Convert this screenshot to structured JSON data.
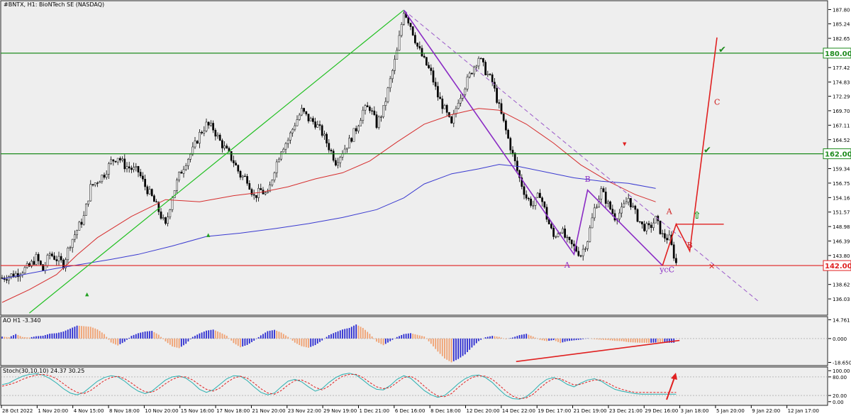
{
  "chart_data": {
    "type": "candlestick",
    "title": "#BNTX, H1: BioNTech SE (NASDAQ)",
    "price_axis": {
      "ticks": [
        187.8,
        185.24,
        182.65,
        180.0,
        177.42,
        174.83,
        172.29,
        169.7,
        167.11,
        164.52,
        161.88,
        159.34,
        156.75,
        154.16,
        151.57,
        148.98,
        146.39,
        143.8,
        142.0,
        138.62,
        136.03
      ],
      "range": [
        133.5,
        189.0
      ]
    },
    "time_axis": {
      "labels": [
        "28 Oct 2022",
        "1 Nov 20:00",
        "4 Nov 15:00",
        "8 Nov 18:00",
        "10 Nov 20:00",
        "15 Nov 16:00",
        "17 Nov 18:00",
        "21 Nov 20:00",
        "23 Nov 22:00",
        "29 Nov 19:00",
        "1 Dec 21:00",
        "6 Dec 16:00",
        "8 Dec 18:00",
        "12 Dec 20:00",
        "14 Dec 22:00",
        "19 Dec 17:00",
        "21 Dec 19:00",
        "23 Dec 21:00",
        "29 Dec 16:00",
        "3 Jan 18:00",
        "5 Jan 20:00",
        "9 Jan 22:00",
        "12 Jan 17:00"
      ]
    },
    "price_path": [
      [
        0,
        139.8
      ],
      [
        2,
        140.5
      ],
      [
        4,
        141.8
      ],
      [
        5,
        143.4
      ],
      [
        6,
        141.2
      ],
      [
        7,
        144.1
      ],
      [
        9,
        142.3
      ],
      [
        10,
        146.0
      ],
      [
        12,
        150.7
      ],
      [
        13,
        156.0
      ],
      [
        15,
        158.4
      ],
      [
        16,
        160.6
      ],
      [
        17,
        161.5
      ],
      [
        18,
        159.9
      ],
      [
        19,
        159.3
      ],
      [
        20,
        158.8
      ],
      [
        21,
        156.2
      ],
      [
        22,
        154.2
      ],
      [
        23,
        151.8
      ],
      [
        24,
        149.0
      ],
      [
        25,
        154.5
      ],
      [
        26,
        158.1
      ],
      [
        27,
        160.6
      ],
      [
        28,
        162.6
      ],
      [
        29,
        165.5
      ],
      [
        30,
        167.2
      ],
      [
        31,
        166.5
      ],
      [
        32,
        164.2
      ],
      [
        33,
        162.4
      ],
      [
        34,
        160.6
      ],
      [
        35,
        158.1
      ],
      [
        36,
        157.5
      ],
      [
        37,
        154.3
      ],
      [
        38,
        155.4
      ],
      [
        39,
        154.5
      ],
      [
        40,
        159.3
      ],
      [
        41,
        162.9
      ],
      [
        42,
        164.5
      ],
      [
        43,
        167.4
      ],
      [
        44,
        169.7
      ],
      [
        45,
        168.2
      ],
      [
        46,
        167.5
      ],
      [
        47,
        165.7
      ],
      [
        48,
        163.2
      ],
      [
        49,
        160.6
      ],
      [
        50,
        162.4
      ],
      [
        51,
        164.2
      ],
      [
        52,
        166.5
      ],
      [
        53,
        169.7
      ],
      [
        54,
        170.3
      ],
      [
        55,
        167.2
      ],
      [
        56,
        169.9
      ],
      [
        57,
        175.1
      ],
      [
        58,
        180.2
      ],
      [
        59,
        187.7
      ],
      [
        60,
        185.0
      ],
      [
        61,
        181.2
      ],
      [
        62,
        178.6
      ],
      [
        63,
        176.4
      ],
      [
        64,
        172.3
      ],
      [
        65,
        169.9
      ],
      [
        66,
        167.0
      ],
      [
        67,
        171.7
      ],
      [
        68,
        174.2
      ],
      [
        69,
        176.9
      ],
      [
        70,
        179.3
      ],
      [
        71,
        176.8
      ],
      [
        72,
        174.8
      ],
      [
        73,
        170.3
      ],
      [
        74,
        166.1
      ],
      [
        75,
        161.8
      ],
      [
        76,
        157.6
      ],
      [
        77,
        154.2
      ],
      [
        78,
        152.8
      ],
      [
        79,
        154.9
      ],
      [
        80,
        150.6
      ],
      [
        81,
        147.1
      ],
      [
        82,
        148.6
      ],
      [
        83,
        146.3
      ],
      [
        84,
        145.2
      ],
      [
        85,
        144.0
      ],
      [
        86,
        146.7
      ],
      [
        87,
        152.1
      ],
      [
        88,
        155.4
      ],
      [
        89,
        152.9
      ],
      [
        90,
        150.7
      ],
      [
        91,
        151.8
      ],
      [
        92,
        154.1
      ],
      [
        93,
        151.3
      ],
      [
        94,
        149.1
      ],
      [
        95,
        148.6
      ],
      [
        96,
        150.3
      ],
      [
        97,
        147.3
      ],
      [
        98,
        146.8
      ],
      [
        99,
        142.4
      ]
    ],
    "moving_averages": [
      {
        "color": "#d62d2d",
        "points": [
          [
            0,
            135.4
          ],
          [
            4,
            137.7
          ],
          [
            8,
            140.4
          ],
          [
            11,
            143.9
          ],
          [
            14,
            147.0
          ],
          [
            19,
            150.8
          ],
          [
            24,
            153.8
          ],
          [
            29,
            153.4
          ],
          [
            34,
            154.5
          ],
          [
            38,
            155.1
          ],
          [
            42,
            156.1
          ],
          [
            46,
            157.5
          ],
          [
            50,
            158.6
          ],
          [
            54,
            160.7
          ],
          [
            58,
            164.1
          ],
          [
            62,
            167.3
          ],
          [
            66,
            169.0
          ],
          [
            70,
            170.1
          ],
          [
            73,
            169.8
          ],
          [
            77,
            167.3
          ],
          [
            81,
            163.9
          ],
          [
            85,
            160.0
          ],
          [
            89,
            157.1
          ],
          [
            93,
            154.7
          ],
          [
            96,
            153.4
          ]
        ]
      },
      {
        "color": "#3a3ad0",
        "points": [
          [
            0,
            139.6
          ],
          [
            4,
            140.6
          ],
          [
            8,
            141.5
          ],
          [
            12,
            142.3
          ],
          [
            16,
            143.1
          ],
          [
            20,
            144.0
          ],
          [
            25,
            145.5
          ],
          [
            30,
            147.2
          ],
          [
            35,
            147.8
          ],
          [
            40,
            148.6
          ],
          [
            45,
            149.5
          ],
          [
            50,
            150.6
          ],
          [
            55,
            152.0
          ],
          [
            59,
            154.1
          ],
          [
            62,
            156.6
          ],
          [
            66,
            158.4
          ],
          [
            70,
            159.3
          ],
          [
            73,
            160.1
          ],
          [
            76,
            159.7
          ],
          [
            80,
            158.7
          ],
          [
            84,
            157.7
          ],
          [
            88,
            157.1
          ],
          [
            92,
            156.7
          ],
          [
            96,
            155.8
          ]
        ]
      }
    ],
    "waves": {
      "green_line": [
        [
          4,
          133.5
        ],
        [
          59,
          187.7
        ]
      ],
      "purple_impulse": [
        [
          59,
          187.7
        ],
        [
          84,
          144.0
        ],
        [
          86,
          155.5
        ],
        [
          97,
          142.0
        ]
      ],
      "purple_dashed": [
        [
          59,
          187.7
        ],
        [
          111,
          135.7
        ]
      ],
      "red_projection": [
        [
          97,
          142.0
        ],
        [
          99,
          149.4
        ],
        [
          101,
          144.6
        ],
        [
          105,
          182.8
        ]
      ],
      "red_box_segment": [
        [
          99,
          149.4
        ],
        [
          106,
          149.4
        ]
      ]
    },
    "horizontal_levels": [
      {
        "price": 180.0,
        "label": "180.00",
        "color": "#1d8b1d"
      },
      {
        "price": 162.0,
        "label": "162.00",
        "color": "#1d8b1d"
      },
      {
        "price": 142.0,
        "label": "142.00",
        "color": "#e02020"
      }
    ],
    "wave_labels": [
      {
        "text": "A",
        "color": "#8a2bc4",
        "pos": [
          83,
          141.6
        ]
      },
      {
        "text": "B",
        "color": "#8a2bc4",
        "pos": [
          86,
          157.0
        ]
      },
      {
        "text": "ycC",
        "color": "#8a2bc4",
        "pos": [
          97,
          140.8
        ]
      },
      {
        "text": "A",
        "color": "#d02020",
        "pos": [
          98,
          151.2
        ]
      },
      {
        "text": "B",
        "color": "#d02020",
        "pos": [
          101,
          145.2
        ]
      },
      {
        "text": "C",
        "color": "#d02020",
        "pos": [
          105,
          170.8
        ]
      }
    ],
    "oscillators": [
      {
        "name": "AO H1",
        "value_text": "-3.340",
        "ticks": [
          14.761,
          0.0,
          -18.65
        ],
        "range": [
          -19.5,
          15.5
        ],
        "values": [
          1.5,
          1.0,
          3.5,
          1.2,
          0.8,
          1.8,
          2.2,
          3.8,
          4.2,
          5.5,
          7.8,
          10.1,
          9.7,
          9.2,
          7.2,
          3.5,
          -3.1,
          -5.4,
          -2.5,
          2.1,
          4.2,
          5.5,
          6.0,
          3.0,
          -2.2,
          -6.2,
          -7.5,
          -4.1,
          1.3,
          4.0,
          6.2,
          7.0,
          4.8,
          2.2,
          -3.5,
          -6.8,
          -5.0,
          -1.7,
          2.5,
          5.8,
          6.8,
          4.7,
          1.3,
          -3.2,
          -6.0,
          -7.2,
          -5.1,
          -1.5,
          2.7,
          5.0,
          7.1,
          8.3,
          11.0,
          8.3,
          3.7,
          -2.4,
          -5.2,
          -2.1,
          1.2,
          3.5,
          4.2,
          2.9,
          1.6,
          -4.1,
          -10.2,
          -15.6,
          -18.6,
          -16.0,
          -12.4,
          -7.0,
          -2.0,
          1.0,
          2.1,
          1.3,
          -0.5,
          0.8,
          2.7,
          3.7,
          1.5,
          -1.0,
          -2.0,
          -1.2,
          -3.5,
          -2.0,
          -1.4,
          -0.8,
          0.2,
          -0.5,
          -0.9,
          -1.2,
          -1.8,
          -2.0,
          -2.8,
          -3.1,
          -3.3,
          -3.4,
          -3.1,
          -3.3,
          -3.3,
          -3.3
        ]
      },
      {
        "name": "Stoch(30,10,10)",
        "value_text": "24.37 30.25",
        "ticks": [
          100.0,
          80.0,
          20.0,
          0.0
        ],
        "range": [
          -5,
          105
        ],
        "main": [
          55,
          60,
          72,
          82,
          88,
          90,
          86,
          75,
          60,
          42,
          28,
          22,
          30,
          48,
          66,
          78,
          84,
          80,
          66,
          48,
          34,
          26,
          34,
          52,
          70,
          80,
          83,
          76,
          60,
          40,
          30,
          38,
          56,
          74,
          84,
          82,
          68,
          48,
          30,
          22,
          28,
          48,
          66,
          72,
          64,
          48,
          34,
          42,
          62,
          78,
          88,
          92,
          86,
          70,
          52,
          40,
          38,
          52,
          72,
          84,
          76,
          56,
          36,
          22,
          14,
          20,
          38,
          58,
          74,
          84,
          86,
          78,
          62,
          40,
          20,
          10,
          8,
          16,
          34,
          56,
          72,
          78,
          70,
          56,
          48,
          60,
          70,
          74,
          66,
          52,
          40,
          34,
          30,
          26,
          24,
          24,
          24,
          24,
          24,
          24
        ],
        "signal": [
          50,
          55,
          62,
          72,
          80,
          86,
          88,
          84,
          74,
          58,
          42,
          30,
          26,
          36,
          52,
          68,
          78,
          82,
          74,
          60,
          44,
          32,
          30,
          42,
          58,
          72,
          80,
          80,
          70,
          54,
          40,
          34,
          44,
          62,
          76,
          82,
          76,
          60,
          42,
          28,
          24,
          36,
          54,
          68,
          70,
          60,
          46,
          38,
          50,
          68,
          82,
          88,
          88,
          78,
          62,
          48,
          42,
          46,
          62,
          78,
          82,
          70,
          50,
          32,
          18,
          16,
          26,
          46,
          64,
          78,
          84,
          82,
          72,
          54,
          34,
          18,
          10,
          12,
          24,
          44,
          62,
          74,
          74,
          64,
          54,
          56,
          64,
          70,
          70,
          60,
          48,
          40,
          34,
          30,
          30,
          30,
          30,
          30,
          30,
          30
        ]
      }
    ],
    "arrows": [
      {
        "type": "red-arrow-up",
        "panel": "stoch"
      }
    ]
  }
}
